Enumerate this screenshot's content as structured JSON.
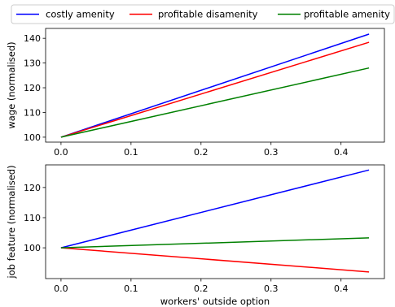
{
  "chart_data": [
    {
      "type": "line",
      "xlabel": "",
      "ylabel": "wage (normalised)",
      "xlim": [
        -0.022,
        0.462
      ],
      "ylim": [
        98,
        144
      ],
      "xticks": [
        0.0,
        0.1,
        0.2,
        0.3,
        0.4
      ],
      "xtick_labels": [
        "0.0",
        "0.1",
        "0.2",
        "0.3",
        "0.4"
      ],
      "yticks": [
        100,
        110,
        120,
        130,
        140
      ],
      "ytick_labels": [
        "100",
        "110",
        "120",
        "130",
        "140"
      ],
      "grid": false,
      "series": [
        {
          "name": "costly amenity",
          "color": "#0000ff",
          "x": [
            0.0,
            0.44
          ],
          "y": [
            100,
            141.7
          ]
        },
        {
          "name": "profitable disamenity",
          "color": "#ff0000",
          "x": [
            0.0,
            0.44
          ],
          "y": [
            100,
            138.4
          ]
        },
        {
          "name": "profitable amenity",
          "color": "#008000",
          "x": [
            0.0,
            0.44
          ],
          "y": [
            100,
            128
          ]
        }
      ]
    },
    {
      "type": "line",
      "xlabel": "workers' outside option",
      "ylabel": "job feature (normalised)",
      "xlim": [
        -0.022,
        0.462
      ],
      "ylim": [
        89.8,
        127.5
      ],
      "xticks": [
        0.0,
        0.1,
        0.2,
        0.3,
        0.4
      ],
      "xtick_labels": [
        "0.0",
        "0.1",
        "0.2",
        "0.3",
        "0.4"
      ],
      "yticks": [
        100,
        110,
        120
      ],
      "ytick_labels": [
        "100",
        "110",
        "120"
      ],
      "grid": false,
      "series": [
        {
          "name": "costly amenity",
          "color": "#0000ff",
          "x": [
            0.0,
            0.44
          ],
          "y": [
            100,
            125.8
          ]
        },
        {
          "name": "profitable disamenity",
          "color": "#ff0000",
          "x": [
            0.0,
            0.44
          ],
          "y": [
            100,
            92
          ]
        },
        {
          "name": "profitable amenity",
          "color": "#008000",
          "x": [
            0.0,
            0.44
          ],
          "y": [
            100,
            103.3
          ]
        }
      ]
    }
  ],
  "legend": {
    "placement": "top",
    "entries": [
      {
        "label": "costly amenity",
        "color": "#0000ff"
      },
      {
        "label": "profitable disamenity",
        "color": "#ff0000"
      },
      {
        "label": "profitable amenity",
        "color": "#008000"
      }
    ]
  }
}
